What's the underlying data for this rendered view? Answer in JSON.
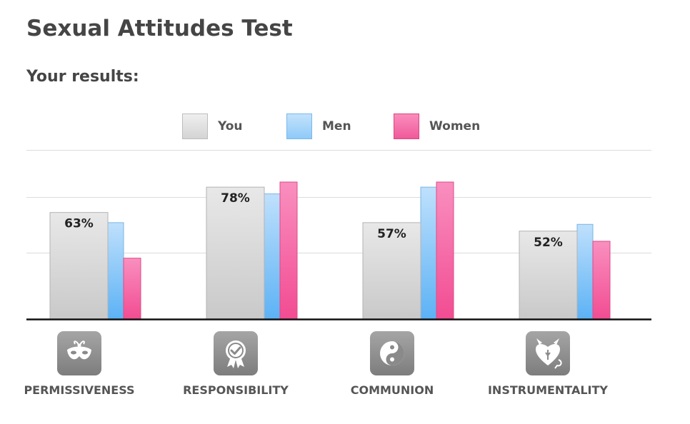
{
  "title": "Sexual Attitudes Test",
  "subtitle": "Your results:",
  "legend": [
    {
      "label": "You",
      "color": "#d9d9d9"
    },
    {
      "label": "Men",
      "color": "#8fcaf8"
    },
    {
      "label": "Women",
      "color": "#f767a6"
    }
  ],
  "categories": [
    {
      "label": "PERMISSIVENESS",
      "icon": "mask-icon"
    },
    {
      "label": "RESPONSIBILITY",
      "icon": "award-badge-icon"
    },
    {
      "label": "COMMUNION",
      "icon": "yin-yang-icon"
    },
    {
      "label": "INSTRUMENTALITY",
      "icon": "devil-heart-icon"
    }
  ],
  "chart_data": {
    "type": "bar",
    "categories": [
      "PERMISSIVENESS",
      "RESPONSIBILITY",
      "COMMUNION",
      "INSTRUMENTALITY"
    ],
    "series": [
      {
        "name": "You",
        "values": [
          63,
          78,
          57,
          52
        ],
        "color": "#d9d9d9"
      },
      {
        "name": "Men",
        "values": [
          57,
          74,
          78,
          56
        ],
        "color": "#8fcaf8"
      },
      {
        "name": "Women",
        "values": [
          36,
          81,
          81,
          46
        ],
        "color": "#f767a6"
      }
    ],
    "data_labels": [
      "63%",
      "78%",
      "57%",
      "52%"
    ],
    "ylim": [
      0,
      100
    ],
    "grid": true,
    "legend_position": "top"
  }
}
